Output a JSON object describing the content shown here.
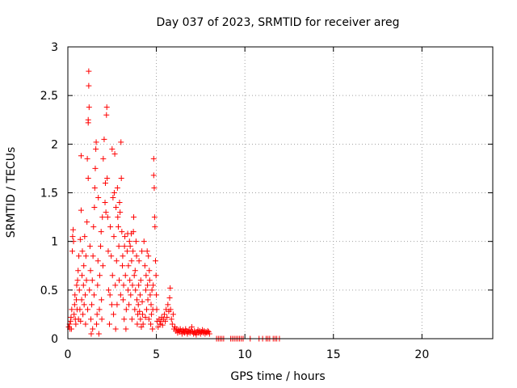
{
  "chart_data": {
    "type": "scatter",
    "title": "Day 037 of 2023, SRMTID for receiver areg",
    "xlabel": "GPS time / hours",
    "ylabel": "SRMTID / TECUs",
    "xlim": [
      0,
      24
    ],
    "ylim": [
      0,
      3
    ],
    "grid": true,
    "marker": "+",
    "marker_color": "#ff0000",
    "x_ticks": [
      0,
      5,
      10,
      15,
      20
    ],
    "x_tick_labels": [
      "0",
      "5",
      "10",
      "15",
      "20"
    ],
    "y_ticks": [
      0,
      0.5,
      1,
      1.5,
      2,
      2.5,
      3
    ],
    "y_tick_labels": [
      "0",
      "0.5",
      "1",
      "1.5",
      "2",
      "2.5",
      "3"
    ],
    "series": [
      {
        "name": "SRMTID",
        "points": [
          [
            0.05,
            0.12
          ],
          [
            0.1,
            0.15
          ],
          [
            0.12,
            0.1
          ],
          [
            0.15,
            0.18
          ],
          [
            0.18,
            0.22
          ],
          [
            0.2,
            0.1
          ],
          [
            0.22,
            0.3
          ],
          [
            0.25,
            0.9
          ],
          [
            0.27,
            1.05
          ],
          [
            0.3,
            1.12
          ],
          [
            0.32,
            1.0
          ],
          [
            0.35,
            0.25
          ],
          [
            0.38,
            0.35
          ],
          [
            0.4,
            0.45
          ],
          [
            0.42,
            0.2
          ],
          [
            0.45,
            0.15
          ],
          [
            0.48,
            0.4
          ],
          [
            0.5,
            0.55
          ],
          [
            0.52,
            0.3
          ],
          [
            0.55,
            0.6
          ],
          [
            0.58,
            0.7
          ],
          [
            0.6,
            0.2
          ],
          [
            0.62,
            0.85
          ],
          [
            0.65,
            0.5
          ],
          [
            0.68,
            0.3
          ],
          [
            0.7,
            1.02
          ],
          [
            0.72,
            0.18
          ],
          [
            0.75,
            1.32
          ],
          [
            0.75,
            1.88
          ],
          [
            0.78,
            0.4
          ],
          [
            0.8,
            0.65
          ],
          [
            0.82,
            0.9
          ],
          [
            0.85,
            0.25
          ],
          [
            0.88,
            0.55
          ],
          [
            0.9,
            0.75
          ],
          [
            0.92,
            0.35
          ],
          [
            0.95,
            1.05
          ],
          [
            0.98,
            0.45
          ],
          [
            1.0,
            0.15
          ],
          [
            1.02,
            0.85
          ],
          [
            1.05,
            0.6
          ],
          [
            1.08,
            1.2
          ],
          [
            1.1,
            1.85
          ],
          [
            1.12,
            0.3
          ],
          [
            1.15,
            1.65
          ],
          [
            1.15,
            2.22
          ],
          [
            1.15,
            2.25
          ],
          [
            1.18,
            2.6
          ],
          [
            1.18,
            2.75
          ],
          [
            1.2,
            2.38
          ],
          [
            1.22,
            0.5
          ],
          [
            1.25,
            0.95
          ],
          [
            1.28,
            0.7
          ],
          [
            1.3,
            0.2
          ],
          [
            1.32,
            0.05
          ],
          [
            1.35,
            0.35
          ],
          [
            1.38,
            0.6
          ],
          [
            1.4,
            0.1
          ],
          [
            1.42,
            0.85
          ],
          [
            1.45,
            1.15
          ],
          [
            1.48,
            0.45
          ],
          [
            1.5,
            1.35
          ],
          [
            1.52,
            1.55
          ],
          [
            1.55,
            1.75
          ],
          [
            1.58,
            1.95
          ],
          [
            1.6,
            2.02
          ],
          [
            1.62,
            0.15
          ],
          [
            1.65,
            0.25
          ],
          [
            1.68,
            0.55
          ],
          [
            1.7,
            0.8
          ],
          [
            1.72,
            1.45
          ],
          [
            1.75,
            0.05
          ],
          [
            1.78,
            0.3
          ],
          [
            1.8,
            0.65
          ],
          [
            1.85,
            0.95
          ],
          [
            1.88,
            1.1
          ],
          [
            1.9,
            0.4
          ],
          [
            1.92,
            0.2
          ],
          [
            1.95,
            1.25
          ],
          [
            1.98,
            0.75
          ],
          [
            2.0,
            1.85
          ],
          [
            2.05,
            2.05
          ],
          [
            2.1,
            1.4
          ],
          [
            2.12,
            1.6
          ],
          [
            2.15,
            1.3
          ],
          [
            2.18,
            2.3
          ],
          [
            2.2,
            2.38
          ],
          [
            2.22,
            1.65
          ],
          [
            2.25,
            1.25
          ],
          [
            2.28,
            0.9
          ],
          [
            2.3,
            0.5
          ],
          [
            2.35,
            0.15
          ],
          [
            2.38,
            0.45
          ],
          [
            2.4,
            1.15
          ],
          [
            2.45,
            0.85
          ],
          [
            2.48,
            0.35
          ],
          [
            2.5,
            1.95
          ],
          [
            2.52,
            0.65
          ],
          [
            2.55,
            1.45
          ],
          [
            2.58,
            0.25
          ],
          [
            2.6,
            1.05
          ],
          [
            2.62,
            1.5
          ],
          [
            2.65,
            1.9
          ],
          [
            2.68,
            0.55
          ],
          [
            2.7,
            0.1
          ],
          [
            2.72,
            1.35
          ],
          [
            2.75,
            0.8
          ],
          [
            2.78,
            0.35
          ],
          [
            2.8,
            1.55
          ],
          [
            2.82,
            1.25
          ],
          [
            2.85,
            1.15
          ],
          [
            2.88,
            0.95
          ],
          [
            2.9,
            0.6
          ],
          [
            2.92,
            1.4
          ],
          [
            2.95,
            1.3
          ],
          [
            2.98,
            0.45
          ],
          [
            3.0,
            2.02
          ],
          [
            3.02,
            1.65
          ],
          [
            3.05,
            1.1
          ],
          [
            3.08,
            0.75
          ],
          [
            3.1,
            0.85
          ],
          [
            3.12,
            0.4
          ],
          [
            3.15,
            0.55
          ],
          [
            3.18,
            0.2
          ],
          [
            3.2,
            0.95
          ],
          [
            3.22,
            1.05
          ],
          [
            3.25,
            0.65
          ],
          [
            3.28,
            0.1
          ],
          [
            3.3,
            0.3
          ],
          [
            3.35,
            0.9
          ],
          [
            3.38,
            1.08
          ],
          [
            3.4,
            0.5
          ],
          [
            3.42,
            0.75
          ],
          [
            3.45,
            0.35
          ],
          [
            3.48,
            1.0
          ],
          [
            3.5,
            0.6
          ],
          [
            3.52,
            0.95
          ],
          [
            3.55,
            0.45
          ],
          [
            3.58,
            1.08
          ],
          [
            3.6,
            0.8
          ],
          [
            3.62,
            0.2
          ],
          [
            3.65,
            0.55
          ],
          [
            3.68,
            0.9
          ],
          [
            3.7,
            1.1
          ],
          [
            3.72,
            1.25
          ],
          [
            3.75,
            0.65
          ],
          [
            3.78,
            0.3
          ],
          [
            3.8,
            0.7
          ],
          [
            3.82,
            0.5
          ],
          [
            3.85,
            1.0
          ],
          [
            3.88,
            0.85
          ],
          [
            3.9,
            0.4
          ],
          [
            3.92,
            0.15
          ],
          [
            3.95,
            0.25
          ],
          [
            3.98,
            0.35
          ],
          [
            4.0,
            0.55
          ],
          [
            4.02,
            0.8
          ],
          [
            4.05,
            0.28
          ],
          [
            4.08,
            0.45
          ],
          [
            4.1,
            0.2
          ],
          [
            4.12,
            0.6
          ],
          [
            4.15,
            0.12
          ],
          [
            4.18,
            0.9
          ],
          [
            4.2,
            0.38
          ],
          [
            4.22,
            0.25
          ],
          [
            4.25,
            0.15
          ],
          [
            4.3,
            1.0
          ],
          [
            4.35,
            0.75
          ],
          [
            4.38,
            0.22
          ],
          [
            4.4,
            0.5
          ],
          [
            4.42,
            0.65
          ],
          [
            4.45,
            0.3
          ],
          [
            4.48,
            0.9
          ],
          [
            4.5,
            0.55
          ],
          [
            4.52,
            0.4
          ],
          [
            4.55,
            0.85
          ],
          [
            4.58,
            0.2
          ],
          [
            4.6,
            0.7
          ],
          [
            4.62,
            0.6
          ],
          [
            4.65,
            0.45
          ],
          [
            4.68,
            0.15
          ],
          [
            4.7,
            0.35
          ],
          [
            4.72,
            0.25
          ],
          [
            4.75,
            0.5
          ],
          [
            4.78,
            0.1
          ],
          [
            4.8,
            0.3
          ],
          [
            4.82,
            0.55
          ],
          [
            4.85,
            1.85
          ],
          [
            4.85,
            1.68
          ],
          [
            4.88,
            1.55
          ],
          [
            4.9,
            1.25
          ],
          [
            4.92,
            1.15
          ],
          [
            4.95,
            0.8
          ],
          [
            4.98,
            0.65
          ],
          [
            5.0,
            0.45
          ],
          [
            5.02,
            0.3
          ],
          [
            5.05,
            0.18
          ],
          [
            5.1,
            0.12
          ],
          [
            5.15,
            0.2
          ],
          [
            5.2,
            0.15
          ],
          [
            5.25,
            0.18
          ],
          [
            5.3,
            0.22
          ],
          [
            5.35,
            0.14
          ],
          [
            5.4,
            0.2
          ],
          [
            5.45,
            0.25
          ],
          [
            5.5,
            0.18
          ],
          [
            5.55,
            0.3
          ],
          [
            5.6,
            0.22
          ],
          [
            5.65,
            0.35
          ],
          [
            5.7,
            0.28
          ],
          [
            5.75,
            0.42
          ],
          [
            5.78,
            0.52
          ],
          [
            5.8,
            0.3
          ],
          [
            5.85,
            0.2
          ],
          [
            5.9,
            0.15
          ],
          [
            5.95,
            0.25
          ],
          [
            6.0,
            0.1
          ],
          [
            6.05,
            0.12
          ],
          [
            6.1,
            0.08
          ],
          [
            6.15,
            0.1
          ],
          [
            6.2,
            0.06
          ],
          [
            6.25,
            0.09
          ],
          [
            6.3,
            0.07
          ],
          [
            6.35,
            0.1
          ],
          [
            6.4,
            0.08
          ],
          [
            6.45,
            0.05
          ],
          [
            6.5,
            0.09
          ],
          [
            6.55,
            0.07
          ],
          [
            6.6,
            0.06
          ],
          [
            6.65,
            0.1
          ],
          [
            6.7,
            0.08
          ],
          [
            6.75,
            0.05
          ],
          [
            6.8,
            0.07
          ],
          [
            6.85,
            0.09
          ],
          [
            6.9,
            0.06
          ],
          [
            6.95,
            0.08
          ],
          [
            7.0,
            0.12
          ],
          [
            7.05,
            0.07
          ],
          [
            7.1,
            0.05
          ],
          [
            7.15,
            0.08
          ],
          [
            7.2,
            0.06
          ],
          [
            7.25,
            0.04
          ],
          [
            7.3,
            0.07
          ],
          [
            7.35,
            0.09
          ],
          [
            7.4,
            0.06
          ],
          [
            7.45,
            0.08
          ],
          [
            7.5,
            0.05
          ],
          [
            7.55,
            0.07
          ],
          [
            7.6,
            0.09
          ],
          [
            7.65,
            0.06
          ],
          [
            7.7,
            0.08
          ],
          [
            7.75,
            0.05
          ],
          [
            7.8,
            0.07
          ],
          [
            7.85,
            0.06
          ],
          [
            7.9,
            0.08
          ],
          [
            7.95,
            0.07
          ],
          [
            8.0,
            0.05
          ],
          [
            8.4,
            0.0
          ],
          [
            8.5,
            0.0
          ],
          [
            8.6,
            0.0
          ],
          [
            8.7,
            0.0
          ],
          [
            8.8,
            0.0
          ],
          [
            9.2,
            0.0
          ],
          [
            9.3,
            0.0
          ],
          [
            9.4,
            0.0
          ],
          [
            9.5,
            0.0
          ],
          [
            9.6,
            0.0
          ],
          [
            9.7,
            0.0
          ],
          [
            9.8,
            0.0
          ],
          [
            9.9,
            0.0
          ],
          [
            10.3,
            0.0
          ],
          [
            10.8,
            0.0
          ],
          [
            11.0,
            0.0
          ],
          [
            11.2,
            0.0
          ],
          [
            11.3,
            0.0
          ],
          [
            11.4,
            0.0
          ],
          [
            11.6,
            0.0
          ],
          [
            11.7,
            0.0
          ],
          [
            11.8,
            0.0
          ],
          [
            11.95,
            0.0
          ]
        ]
      }
    ]
  }
}
